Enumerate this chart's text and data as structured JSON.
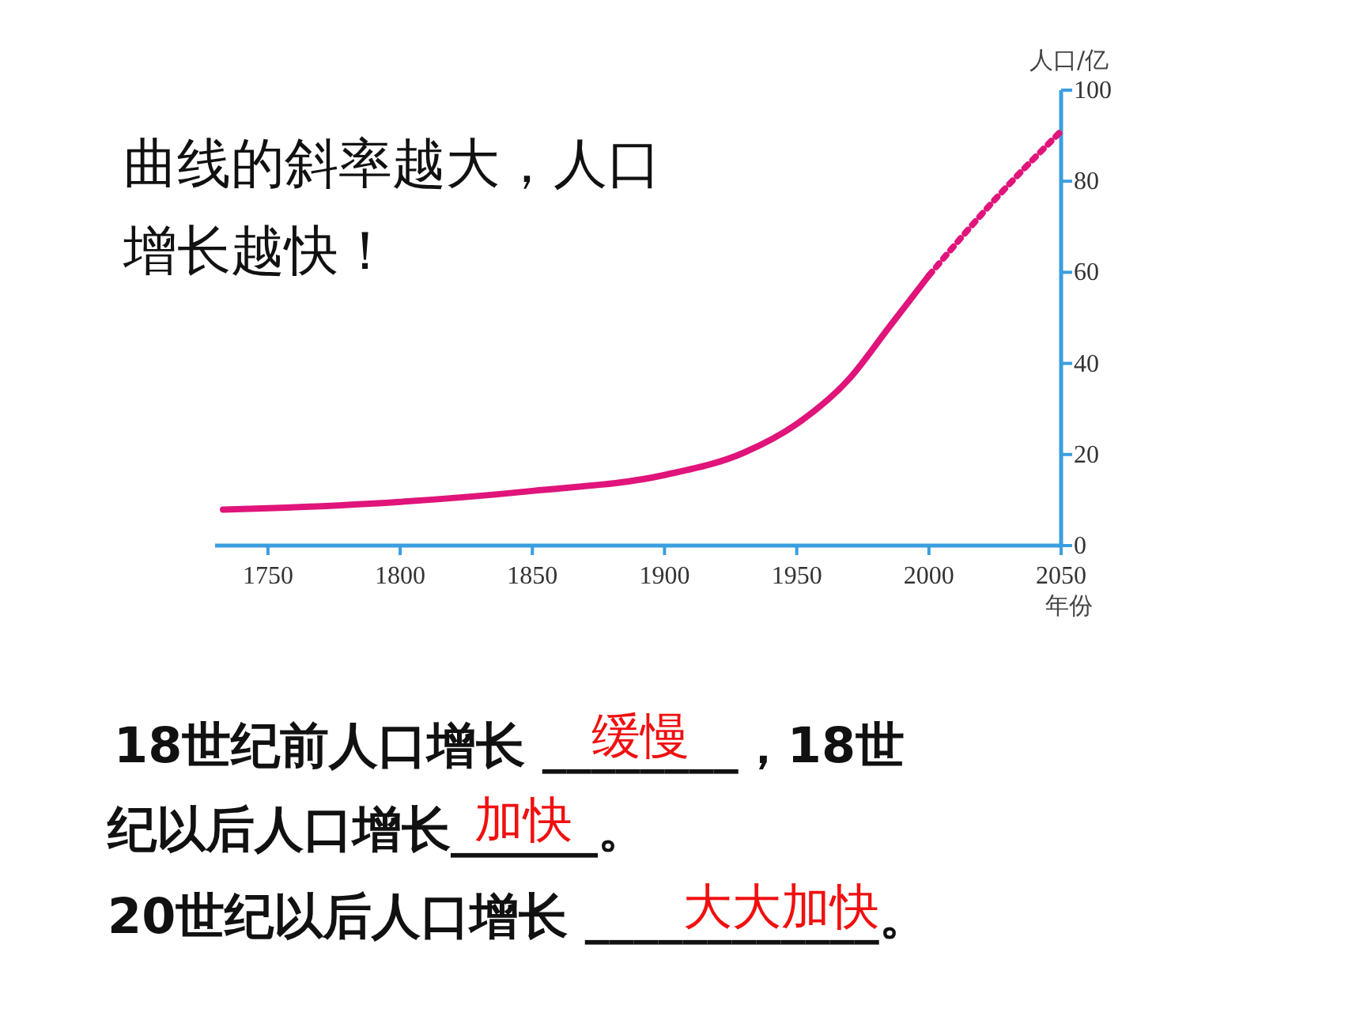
{
  "chart_data": {
    "type": "line",
    "xlabel": "年份",
    "ylabel": "人口/亿",
    "xlim": [
      1730,
      2050
    ],
    "xticks": [
      1750,
      1800,
      1850,
      1900,
      1950,
      2000,
      2050
    ],
    "ylim": [
      0,
      100
    ],
    "yticks": [
      0,
      20,
      40,
      60,
      80,
      100
    ],
    "series": [
      {
        "color": "#e0147a",
        "line_style": "solid",
        "x": [
          1733,
          1750,
          1800,
          1850,
          1900,
          1930,
          1950,
          1970,
          1985,
          2000
        ],
        "values": [
          7.9,
          8.2,
          9.6,
          12,
          15.5,
          20.4,
          26.7,
          36.7,
          48,
          59.3
        ]
      },
      {
        "color": "#e0147a",
        "line_style": "dotted",
        "x": [
          2000,
          2025,
          2050
        ],
        "values": [
          59.3,
          76,
          91
        ]
      }
    ],
    "annotations": [
      "曲线的斜率越大，人口",
      "增长越快！",
      "18世纪前人口增长 ________，18世",
      "纪以后人口增长______。",
      "20世纪以后人口增长 ____________。",
      "缓慢",
      "加快",
      "大大加快"
    ]
  }
}
